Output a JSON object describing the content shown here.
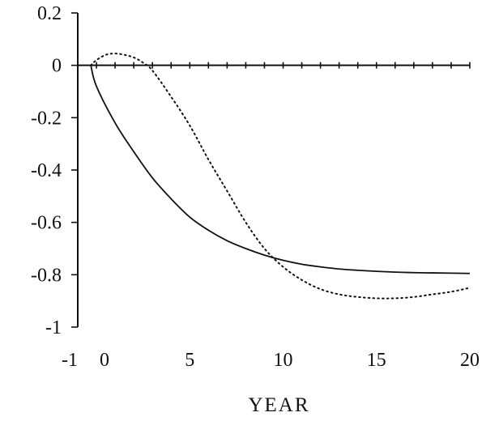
{
  "chart_data": {
    "type": "line",
    "title": "",
    "xlabel": "YEAR",
    "ylabel": "",
    "xlim": [
      -1,
      20
    ],
    "ylim": [
      -1,
      0.2
    ],
    "x_ticks": [
      -1,
      0,
      5,
      10,
      15,
      20
    ],
    "x_tick_labels": [
      "-1",
      "0",
      "5",
      "10",
      "15",
      "20"
    ],
    "y_ticks": [
      0.2,
      0,
      -0.2,
      -0.4,
      -0.6,
      -0.8,
      -1
    ],
    "y_tick_labels": [
      "0.2",
      "0",
      "-0.2",
      "-0.4",
      "-0.6",
      "-0.8",
      "-1"
    ],
    "zero_line_minor_tick_step": 1,
    "grid": false,
    "legend": "none",
    "series": [
      {
        "style": "solid",
        "color": "#111111",
        "x": [
          -0.3,
          0,
          1,
          2,
          3,
          4,
          5,
          6,
          7,
          8,
          9,
          10,
          11,
          12,
          13,
          14,
          15,
          16,
          17,
          18,
          19,
          20
        ],
        "y": [
          0,
          -0.08,
          -0.22,
          -0.33,
          -0.43,
          -0.51,
          -0.58,
          -0.63,
          -0.67,
          -0.7,
          -0.725,
          -0.745,
          -0.76,
          -0.77,
          -0.778,
          -0.783,
          -0.787,
          -0.79,
          -0.792,
          -0.793,
          -0.794,
          -0.795
        ]
      },
      {
        "style": "dotted",
        "color": "#111111",
        "x": [
          -0.3,
          0,
          0.5,
          1,
          1.5,
          2,
          2.5,
          3,
          4,
          5,
          6,
          7,
          8,
          9,
          10,
          11,
          12,
          13,
          14,
          15,
          16,
          17,
          18,
          19,
          20
        ],
        "y": [
          0,
          0.02,
          0.04,
          0.045,
          0.04,
          0.03,
          0.01,
          -0.02,
          -0.12,
          -0.23,
          -0.36,
          -0.48,
          -0.6,
          -0.7,
          -0.77,
          -0.82,
          -0.855,
          -0.875,
          -0.885,
          -0.89,
          -0.89,
          -0.885,
          -0.875,
          -0.865,
          -0.85
        ]
      }
    ]
  }
}
